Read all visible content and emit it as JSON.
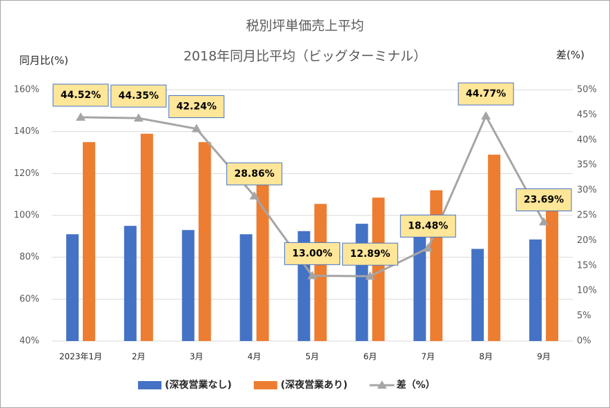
{
  "chart_data": {
    "type": "bar",
    "title": "税別坪単価売上平均",
    "subtitle": "2018年同月比平均（ビッグターミナル）",
    "y_label": "同月比(%)",
    "y2_label": "差(%)",
    "categories": [
      "2023年1月",
      "2月",
      "3月",
      "4月",
      "5月",
      "6月",
      "7月",
      "8月",
      "9月"
    ],
    "series": [
      {
        "name": "(深夜営業なし)",
        "color": "#4472c4",
        "values": [
          91,
          95,
          93,
          91,
          92.5,
          96,
          92,
          84,
          88.5
        ]
      },
      {
        "name": "(深夜営業あり)",
        "color": "#ed7d31",
        "values": [
          135,
          139,
          135,
          118,
          105.5,
          108.5,
          112,
          129,
          112.5
        ]
      },
      {
        "name": "差（%）",
        "color": "#a5a5a5",
        "type": "line",
        "axis": "y2",
        "values": [
          44.52,
          44.35,
          42.24,
          28.86,
          13.0,
          12.89,
          18.48,
          44.77,
          23.69
        ],
        "value_labels": [
          "44.52%",
          "44.35%",
          "42.24%",
          "28.86%",
          "13.00%",
          "12.89%",
          "18.48%",
          "44.77%",
          "23.69%"
        ]
      }
    ],
    "ylim": [
      40,
      160
    ],
    "yticks": [
      {
        "value": 40,
        "label": "40%"
      },
      {
        "value": 60,
        "label": "60%"
      },
      {
        "value": 80,
        "label": "80%"
      },
      {
        "value": 100,
        "label": "100%"
      },
      {
        "value": 120,
        "label": "120%"
      },
      {
        "value": 140,
        "label": "140%"
      },
      {
        "value": 160,
        "label": "160%"
      }
    ],
    "y2lim": [
      0,
      50
    ],
    "y2ticks": [
      {
        "value": 0,
        "label": "0%"
      },
      {
        "value": 5,
        "label": "5%"
      },
      {
        "value": 10,
        "label": "10%"
      },
      {
        "value": 15,
        "label": "15%"
      },
      {
        "value": 20,
        "label": "20%"
      },
      {
        "value": 25,
        "label": "25%"
      },
      {
        "value": 30,
        "label": "30%"
      },
      {
        "value": 35,
        "label": "35%"
      },
      {
        "value": 40,
        "label": "40%"
      },
      {
        "value": 45,
        "label": "45%"
      },
      {
        "value": 50,
        "label": "50%"
      }
    ],
    "grid": true,
    "legend": "bottom"
  }
}
